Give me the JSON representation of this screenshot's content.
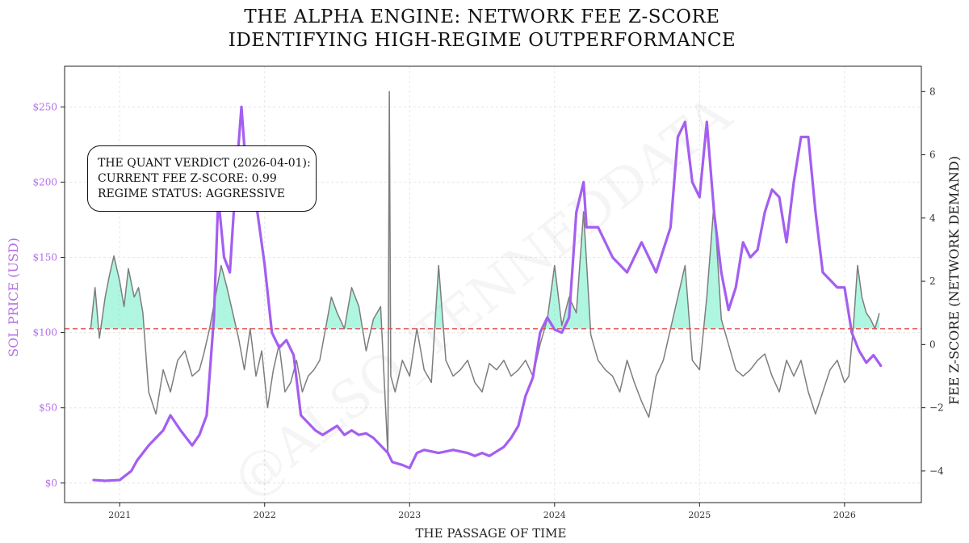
{
  "chart_data": {
    "type": "line",
    "title": [
      "THE ALPHA ENGINE: NETWORK FEE Z-SCORE",
      "IDENTIFYING HIGH-REGIME OUTPERFORMANCE"
    ],
    "xlabel": "THE PASSAGE OF TIME",
    "ylabel_left": "SOL PRICE (USD)",
    "ylabel_right": "FEE Z-SCORE (NETWORK DEMAND)",
    "x_ticks": [
      "2021",
      "2022",
      "2023",
      "2024",
      "2025",
      "2026"
    ],
    "y_left_ticks": [
      "$0",
      "$50",
      "$100",
      "$150",
      "$200",
      "$250"
    ],
    "y_left_values": [
      0,
      50,
      100,
      150,
      200,
      250
    ],
    "y_right_ticks": [
      "−4",
      "−2",
      "0",
      "2",
      "4",
      "6",
      "8"
    ],
    "y_right_values": [
      -4,
      -2,
      0,
      2,
      4,
      6,
      8
    ],
    "xlim": [
      2020.62,
      2026.53
    ],
    "ylim_left": [
      -13,
      277
    ],
    "ylim_right": [
      -5,
      8.8
    ],
    "threshold_z": 0.5,
    "grid": true,
    "watermark": "@ALSO_TENNEDDATA",
    "annotation": {
      "line1": "THE QUANT VERDICT (2026-04-01):",
      "line2": "CURRENT FEE Z-SCORE: 0.99",
      "line3": "REGIME STATUS: AGGRESSIVE"
    },
    "colors": {
      "price": "#a45ef0",
      "zscore": "#7d7d7d",
      "fill": "#2ee8b0",
      "threshold": "#e05050",
      "left_axis_text": "#b46ee6"
    },
    "series": [
      {
        "name": "SOL Price",
        "axis": "left",
        "x": [
          2020.82,
          2020.9,
          2021.0,
          2021.08,
          2021.12,
          2021.2,
          2021.3,
          2021.35,
          2021.42,
          2021.5,
          2021.55,
          2021.6,
          2021.65,
          2021.68,
          2021.72,
          2021.76,
          2021.8,
          2021.84,
          2021.87,
          2021.91,
          2021.95,
          2022.0,
          2022.05,
          2022.1,
          2022.15,
          2022.2,
          2022.25,
          2022.3,
          2022.35,
          2022.4,
          2022.45,
          2022.5,
          2022.55,
          2022.6,
          2022.65,
          2022.7,
          2022.75,
          2022.8,
          2022.85,
          2022.88,
          2022.95,
          2023.0,
          2023.05,
          2023.1,
          2023.2,
          2023.3,
          2023.4,
          2023.45,
          2023.5,
          2023.55,
          2023.6,
          2023.65,
          2023.7,
          2023.75,
          2023.8,
          2023.85,
          2023.9,
          2023.95,
          2024.0,
          2024.05,
          2024.1,
          2024.15,
          2024.2,
          2024.22,
          2024.3,
          2024.4,
          2024.5,
          2024.6,
          2024.7,
          2024.8,
          2024.85,
          2024.9,
          2024.95,
          2025.0,
          2025.05,
          2025.1,
          2025.15,
          2025.2,
          2025.25,
          2025.3,
          2025.35,
          2025.4,
          2025.45,
          2025.5,
          2025.55,
          2025.6,
          2025.65,
          2025.7,
          2025.75,
          2025.8,
          2025.85,
          2025.9,
          2025.95,
          2026.0,
          2026.05,
          2026.1,
          2026.15,
          2026.2,
          2026.25
        ],
        "y": [
          2,
          1.5,
          2,
          8,
          15,
          25,
          35,
          45,
          35,
          25,
          32,
          45,
          110,
          190,
          150,
          140,
          200,
          250,
          210,
          195,
          180,
          145,
          100,
          90,
          95,
          85,
          45,
          40,
          35,
          32,
          35,
          38,
          32,
          35,
          32,
          33,
          30,
          25,
          20,
          14,
          12,
          10,
          20,
          22,
          20,
          22,
          20,
          18,
          20,
          18,
          21,
          24,
          30,
          38,
          58,
          70,
          100,
          110,
          102,
          100,
          110,
          180,
          200,
          170,
          170,
          150,
          140,
          160,
          140,
          170,
          230,
          240,
          200,
          190,
          240,
          180,
          140,
          115,
          130,
          160,
          150,
          155,
          180,
          195,
          190,
          160,
          200,
          230,
          230,
          180,
          140,
          135,
          130,
          130,
          100,
          88,
          80,
          85,
          78
        ]
      },
      {
        "name": "Fee Z-Score",
        "axis": "right",
        "x": [
          2020.8,
          2020.83,
          2020.86,
          2020.9,
          2020.93,
          2020.96,
          2021.0,
          2021.03,
          2021.06,
          2021.1,
          2021.13,
          2021.16,
          2021.2,
          2021.25,
          2021.3,
          2021.35,
          2021.4,
          2021.45,
          2021.5,
          2021.55,
          2021.58,
          2021.62,
          2021.66,
          2021.7,
          2021.74,
          2021.78,
          2021.82,
          2021.86,
          2021.9,
          2021.94,
          2021.98,
          2022.02,
          2022.06,
          2022.1,
          2022.14,
          2022.18,
          2022.22,
          2022.26,
          2022.3,
          2022.34,
          2022.38,
          2022.42,
          2022.46,
          2022.5,
          2022.55,
          2022.6,
          2022.65,
          2022.7,
          2022.75,
          2022.8,
          2022.85,
          2022.86,
          2022.87,
          2022.9,
          2022.95,
          2023.0,
          2023.05,
          2023.1,
          2023.15,
          2023.2,
          2023.25,
          2023.3,
          2023.35,
          2023.4,
          2023.45,
          2023.5,
          2023.55,
          2023.6,
          2023.65,
          2023.7,
          2023.75,
          2023.8,
          2023.85,
          2023.9,
          2023.95,
          2024.0,
          2024.05,
          2024.1,
          2024.15,
          2024.2,
          2024.25,
          2024.3,
          2024.35,
          2024.4,
          2024.45,
          2024.5,
          2024.55,
          2024.6,
          2024.65,
          2024.7,
          2024.75,
          2024.8,
          2024.85,
          2024.9,
          2024.95,
          2025.0,
          2025.05,
          2025.1,
          2025.15,
          2025.2,
          2025.25,
          2025.3,
          2025.35,
          2025.4,
          2025.45,
          2025.5,
          2025.55,
          2025.6,
          2025.65,
          2025.7,
          2025.75,
          2025.8,
          2025.85,
          2025.9,
          2025.95,
          2026.0,
          2026.03,
          2026.06,
          2026.09,
          2026.12,
          2026.15,
          2026.18,
          2026.21,
          2026.24
        ],
        "y": [
          0.5,
          1.8,
          0.2,
          1.5,
          2.2,
          2.8,
          2.0,
          1.2,
          2.4,
          1.5,
          1.8,
          1.0,
          -1.5,
          -2.2,
          -0.8,
          -1.5,
          -0.5,
          -0.2,
          -1.0,
          -0.8,
          -0.3,
          0.5,
          1.5,
          2.5,
          1.8,
          1.0,
          0.2,
          -0.8,
          0.5,
          -1.0,
          -0.2,
          -2.0,
          -0.8,
          0.0,
          -1.5,
          -1.2,
          -0.5,
          -1.5,
          -1.0,
          -0.8,
          -0.5,
          0.5,
          1.5,
          1.0,
          0.5,
          1.8,
          1.2,
          -0.2,
          0.8,
          1.2,
          -3.5,
          8.0,
          -1.0,
          -1.5,
          -0.5,
          -1.0,
          0.5,
          -0.8,
          -1.2,
          2.5,
          -0.5,
          -1.0,
          -0.8,
          -0.5,
          -1.2,
          -1.5,
          -0.6,
          -0.8,
          -0.5,
          -1.0,
          -0.8,
          -0.5,
          -1.0,
          0.0,
          0.8,
          2.5,
          0.6,
          1.5,
          1.0,
          4.2,
          0.3,
          -0.5,
          -0.8,
          -1.0,
          -1.5,
          -0.5,
          -1.2,
          -1.8,
          -2.3,
          -1.0,
          -0.5,
          0.5,
          1.5,
          2.5,
          -0.5,
          -0.8,
          1.5,
          4.5,
          0.8,
          0.0,
          -0.8,
          -1.0,
          -0.8,
          -0.5,
          -0.3,
          -1.0,
          -1.5,
          -0.5,
          -1.0,
          -0.5,
          -1.5,
          -2.2,
          -1.5,
          -0.8,
          -0.5,
          -1.2,
          -1.0,
          0.5,
          2.5,
          1.5,
          1.0,
          0.8,
          0.5,
          0.99
        ]
      }
    ]
  }
}
